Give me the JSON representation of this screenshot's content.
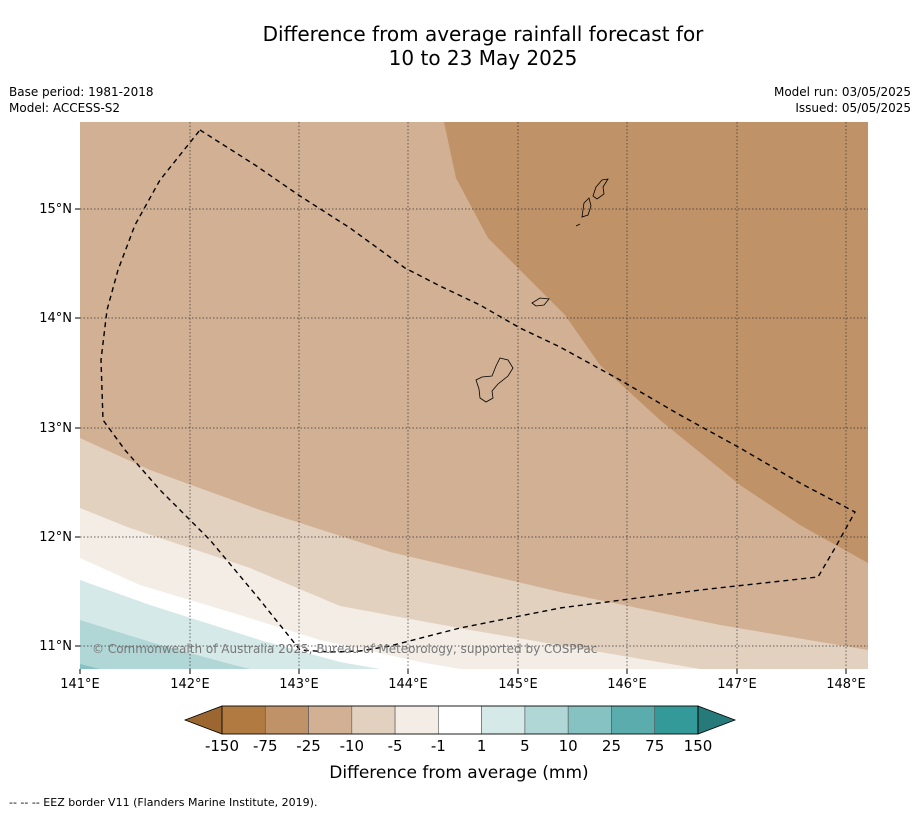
{
  "title": {
    "line1": "Difference from average rainfall forecast for",
    "line2": "10 to 23 May 2025"
  },
  "meta": {
    "base_period": "Base period: 1981-2018",
    "model": "Model: ACCESS-S2",
    "model_run": "Model run: 03/05/2025",
    "issued": "Issued: 05/05/2025"
  },
  "map": {
    "lon_labels": [
      "141°E",
      "142°E",
      "143°E",
      "144°E",
      "145°E",
      "146°E",
      "147°E",
      "148°E"
    ],
    "lat_labels": [
      "15°N",
      "14°N",
      "13°N",
      "12°N",
      "11°N"
    ],
    "copyright": "© Commonwealth of Australia 2025, Bureau of Meteorology, supported by COSPPac"
  },
  "colorbar": {
    "labels": [
      "-150",
      "-75",
      "-25",
      "-10",
      "-5",
      "-1",
      "1",
      "5",
      "10",
      "25",
      "75",
      "150"
    ],
    "colors": [
      "#9c6631",
      "#b07a40",
      "#bf9268",
      "#d1b094",
      "#e3d1c0",
      "#f3ede6",
      "#ffffff",
      "#d5e9e8",
      "#b0d6d5",
      "#86c2c2",
      "#5aacad",
      "#339999",
      "#267b7a"
    ],
    "title": "Difference from average (mm)"
  },
  "footnote": "--  --  -- EEZ border V11 (Flanders Marine Institute, 2019)."
}
